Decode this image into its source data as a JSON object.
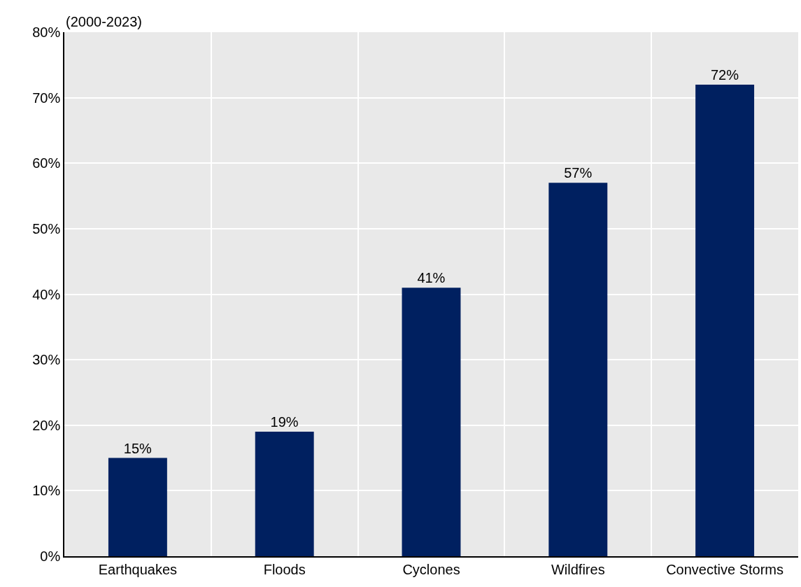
{
  "chart_data": {
    "type": "bar",
    "subtitle": "(2000-2023)",
    "categories": [
      "Earthquakes",
      "Floods",
      "Cyclones",
      "Wildfires",
      "Convective Storms"
    ],
    "values": [
      15,
      19,
      41,
      57,
      72
    ],
    "color": "#002060",
    "data_labels": true,
    "value_labels": [
      "15%",
      "19%",
      "41%",
      "57%",
      "72%"
    ],
    "ylim": [
      0,
      80
    ],
    "yticks": [
      {
        "value": 0,
        "label": "0%"
      },
      {
        "value": 10,
        "label": "10%"
      },
      {
        "value": 20,
        "label": "20%"
      },
      {
        "value": 30,
        "label": "30%"
      },
      {
        "value": 40,
        "label": "40%"
      },
      {
        "value": 50,
        "label": "50%"
      },
      {
        "value": 60,
        "label": "60%"
      },
      {
        "value": 70,
        "label": "70%"
      },
      {
        "value": 80,
        "label": "80%"
      }
    ],
    "grid": true,
    "legend": false
  }
}
